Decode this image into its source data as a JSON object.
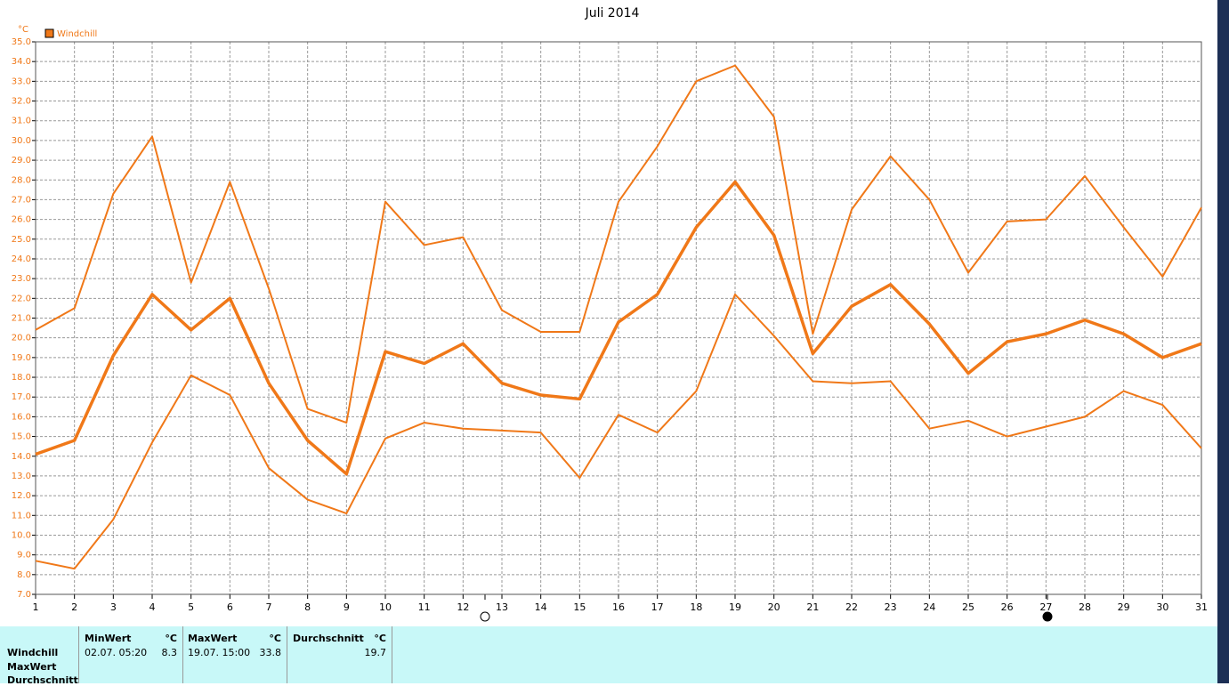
{
  "chart_data": {
    "type": "line",
    "title": "Juli 2014",
    "y_unit": "°C",
    "legend": "Windchill",
    "legend_color": "#f07818",
    "x": [
      1,
      2,
      3,
      4,
      5,
      6,
      7,
      8,
      9,
      10,
      11,
      12,
      13,
      14,
      15,
      16,
      17,
      18,
      19,
      20,
      21,
      22,
      23,
      24,
      25,
      26,
      27,
      28,
      29,
      30,
      31
    ],
    "xlim": [
      1,
      31
    ],
    "xticks": [
      1,
      2,
      3,
      4,
      5,
      6,
      7,
      8,
      9,
      10,
      11,
      12,
      13,
      14,
      15,
      16,
      17,
      18,
      19,
      20,
      21,
      22,
      23,
      24,
      25,
      26,
      27,
      28,
      29,
      30,
      31
    ],
    "ylim": [
      7,
      35
    ],
    "yticks": [
      {
        "value": 7,
        "label": "7.0"
      },
      {
        "value": 8,
        "label": "8.0"
      },
      {
        "value": 9,
        "label": "9.0"
      },
      {
        "value": 10,
        "label": "10.0"
      },
      {
        "value": 11,
        "label": "11.0"
      },
      {
        "value": 12,
        "label": "12.0"
      },
      {
        "value": 13,
        "label": "13.0"
      },
      {
        "value": 14,
        "label": "14.0"
      },
      {
        "value": 15,
        "label": "15.0"
      },
      {
        "value": 16,
        "label": "16.0"
      },
      {
        "value": 17,
        "label": "17.0"
      },
      {
        "value": 18,
        "label": "18.0"
      },
      {
        "value": 19,
        "label": "19.0"
      },
      {
        "value": 20,
        "label": "20.0"
      },
      {
        "value": 21,
        "label": "21.0"
      },
      {
        "value": 22,
        "label": "22.0"
      },
      {
        "value": 23,
        "label": "23.0"
      },
      {
        "value": 24,
        "label": "24.0"
      },
      {
        "value": 25,
        "label": "25.0"
      },
      {
        "value": 26,
        "label": "26.0"
      },
      {
        "value": 27,
        "label": "27.0"
      },
      {
        "value": 28,
        "label": "28.0"
      },
      {
        "value": 29,
        "label": "29.0"
      },
      {
        "value": 30,
        "label": "30.0"
      },
      {
        "value": 31,
        "label": "31.0"
      },
      {
        "value": 32,
        "label": "32.0"
      },
      {
        "value": 33,
        "label": "33.0"
      },
      {
        "value": 34,
        "label": "34.0"
      },
      {
        "value": 35,
        "label": "35.0"
      }
    ],
    "grid": true,
    "series": [
      {
        "color": "#f07818",
        "line_width": 2,
        "values": [
          20.4,
          21.5,
          27.3,
          30.2,
          22.8,
          27.9,
          22.5,
          16.4,
          15.7,
          26.9,
          24.7,
          25.1,
          21.4,
          20.3,
          20.3,
          26.9,
          29.7,
          33.0,
          33.8,
          31.2,
          20.2,
          26.5,
          29.2,
          27.0,
          23.3,
          25.9,
          26.0,
          28.2,
          25.6,
          23.1,
          26.6
        ]
      },
      {
        "color": "#f07818",
        "line_width": 3.5,
        "values": [
          14.1,
          14.8,
          19.1,
          22.2,
          20.4,
          22.0,
          17.7,
          14.8,
          13.1,
          19.3,
          18.7,
          19.7,
          17.7,
          17.1,
          16.9,
          20.8,
          22.2,
          25.6,
          27.9,
          25.2,
          19.2,
          21.6,
          22.7,
          20.7,
          18.2,
          19.8,
          20.2,
          20.9,
          20.2,
          19.0,
          19.7
        ]
      },
      {
        "color": "#f07818",
        "line_width": 2,
        "values": [
          8.7,
          8.3,
          10.8,
          14.7,
          18.1,
          17.1,
          13.4,
          11.8,
          11.1,
          14.9,
          15.7,
          15.4,
          15.3,
          15.2,
          12.9,
          16.1,
          15.2,
          17.3,
          22.2,
          20.1,
          17.8,
          17.7,
          17.8,
          15.4,
          15.8,
          15.0,
          15.5,
          16.0,
          17.3,
          16.6,
          14.4
        ]
      }
    ]
  },
  "table": {
    "row_labels": [
      "Windchill",
      "MaxWert",
      "Durchschnitt"
    ],
    "columns": [
      {
        "header": "MinWert",
        "unit": "°C",
        "time": "02.07.  05:20",
        "value": "8.3"
      },
      {
        "header": "MaxWert",
        "unit": "°C",
        "time": "19.07.  15:00",
        "value": "33.8"
      },
      {
        "header": "Durchschnitt",
        "unit": "°C",
        "value": "19.7"
      }
    ]
  }
}
